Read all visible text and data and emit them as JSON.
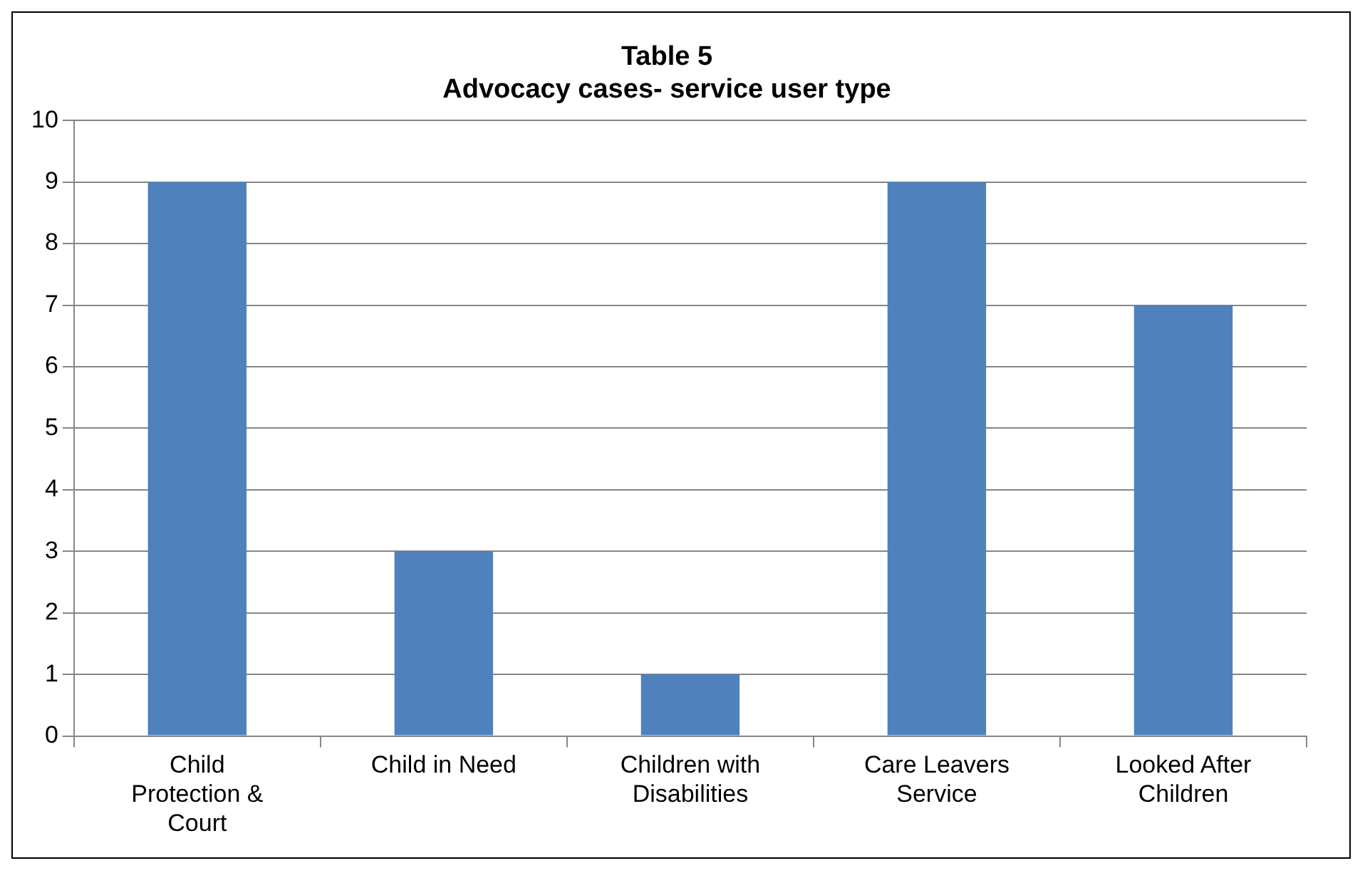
{
  "chart_data": {
    "type": "bar",
    "title": "Table 5",
    "subtitle": "Advocacy cases- service user type",
    "categories": [
      "Child Protection & Court",
      "Child in Need",
      "Children with Disabilities",
      "Care Leavers Service",
      "Looked After Children"
    ],
    "values": [
      9,
      3,
      1,
      9,
      7
    ],
    "color": "#4f81bd",
    "ylim": [
      0,
      10
    ],
    "yticks": [
      0,
      1,
      2,
      3,
      4,
      5,
      6,
      7,
      8,
      9,
      10
    ],
    "grid": "y",
    "legend": false
  }
}
